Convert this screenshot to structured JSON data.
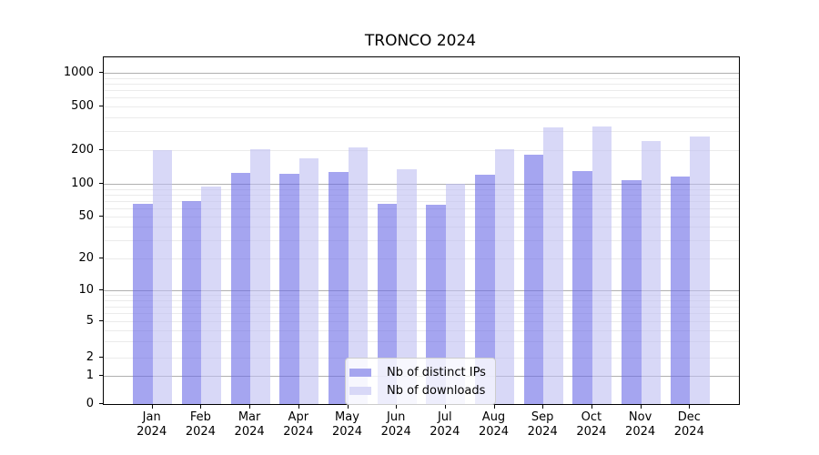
{
  "chart_data": {
    "type": "bar",
    "title": "TRONCO 2024",
    "categories": [
      "Jan 2024",
      "Feb 2024",
      "Mar 2024",
      "Apr 2024",
      "May 2024",
      "Jun 2024",
      "Jul 2024",
      "Aug 2024",
      "Sep 2024",
      "Oct 2024",
      "Nov 2024",
      "Dec 2024"
    ],
    "series": [
      {
        "name": "Nb of distinct IPs",
        "color": "#a5a5ef",
        "fill": "rgba(105,105,230,0.6)",
        "values": [
          66,
          70,
          126,
          124,
          128,
          66,
          64,
          120,
          184,
          129,
          108,
          117
        ]
      },
      {
        "name": "Nb of downloads",
        "color": "#d8d8f7",
        "fill": "rgba(190,190,242,0.6)",
        "values": [
          200,
          95,
          205,
          168,
          213,
          135,
          100,
          205,
          320,
          330,
          242,
          266
        ]
      }
    ],
    "y_axis": {
      "scale": "symlog",
      "tick_labels": [
        "0",
        "1",
        "2",
        "5",
        "10",
        "20",
        "50",
        "100",
        "200",
        "500",
        "1000"
      ],
      "tick_values": [
        0,
        1,
        2,
        5,
        10,
        20,
        50,
        100,
        200,
        500,
        1000
      ],
      "major_gridlines": [
        1,
        10,
        100,
        1000
      ],
      "range": [
        0,
        1000
      ]
    },
    "x_axis": {
      "year_line": "2024"
    },
    "grid": true,
    "legend": {
      "position": "lower-center",
      "labels": [
        "Nb of distinct IPs",
        "Nb of downloads"
      ]
    },
    "colors": {
      "major_grid": "#b0b0b0",
      "minor_grid": "#ebebeb",
      "axis": "#000000",
      "background": "#ffffff"
    }
  }
}
